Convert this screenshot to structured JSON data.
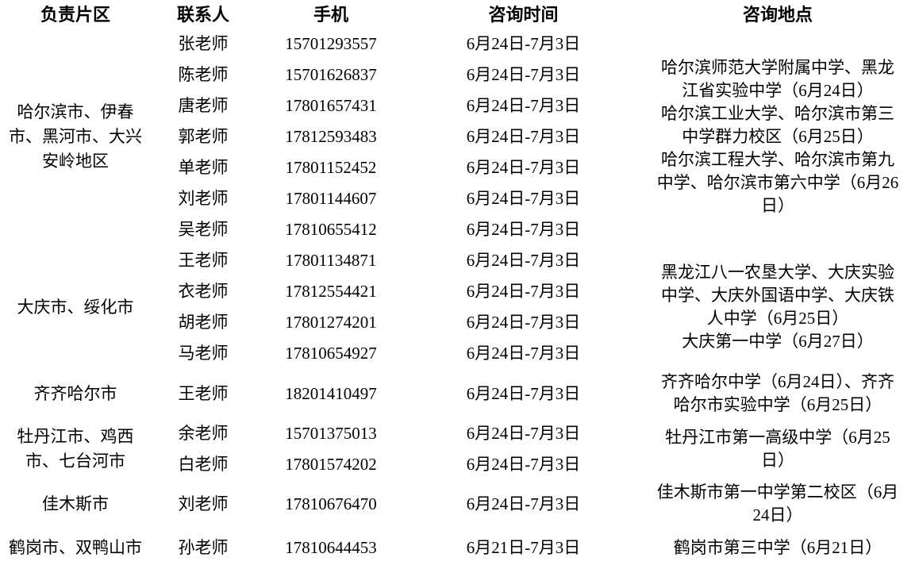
{
  "table": {
    "headers": {
      "area": "负责片区",
      "contact": "联系人",
      "phone": "手机",
      "time": "咨询时间",
      "location": "咨询地点"
    },
    "groups": [
      {
        "area": "哈尔滨市、伊春市、黑河市、大兴安岭地区",
        "contacts": [
          {
            "name": "张老师",
            "phone": "15701293557",
            "time": "6月24日-7月3日"
          },
          {
            "name": "陈老师",
            "phone": "15701626837",
            "time": "6月24日-7月3日"
          },
          {
            "name": "唐老师",
            "phone": "17801657431",
            "time": "6月24日-7月3日"
          },
          {
            "name": "郭老师",
            "phone": "17812593483",
            "time": "6月24日-7月3日"
          },
          {
            "name": "单老师",
            "phone": "17801152452",
            "time": "6月24日-7月3日"
          },
          {
            "name": "刘老师",
            "phone": "17801144607",
            "time": "6月24日-7月3日"
          },
          {
            "name": "吴老师",
            "phone": "17810655412",
            "time": "6月24日-7月3日"
          }
        ],
        "locations": [
          "哈尔滨师范大学附属中学、黑龙江省实验中学（6月24日）",
          "哈尔滨工业大学、哈尔滨市第三中学群力校区（6月25日）",
          "哈尔滨工程大学、哈尔滨市第九中学、哈尔滨市第六中学（6月26日）"
        ]
      },
      {
        "area": "大庆市、绥化市",
        "contacts": [
          {
            "name": "王老师",
            "phone": "17801134871",
            "time": "6月24日-7月3日"
          },
          {
            "name": "衣老师",
            "phone": "17812554421",
            "time": "6月24日-7月3日"
          },
          {
            "name": "胡老师",
            "phone": "17801274201",
            "time": "6月24日-7月3日"
          },
          {
            "name": "马老师",
            "phone": "17810654927",
            "time": "6月24日-7月3日"
          }
        ],
        "locations": [
          "黑龙江八一农垦大学、大庆实验中学、大庆外国语中学、大庆铁人中学（6月25日）",
          "大庆第一中学（6月27日）"
        ]
      },
      {
        "area": "齐齐哈尔市",
        "contacts": [
          {
            "name": "王老师",
            "phone": "18201410497",
            "time": "6月24日-7月3日"
          }
        ],
        "locations": [
          "齐齐哈尔中学（6月24日）、齐齐哈尔市实验中学（6月25日）"
        ]
      },
      {
        "area": "牡丹江市、鸡西市、七台河市",
        "contacts": [
          {
            "name": "余老师",
            "phone": "15701375013",
            "time": "6月24日-7月3日"
          },
          {
            "name": "白老师",
            "phone": "17801574202",
            "time": "6月24日-7月3日"
          }
        ],
        "locations": [
          "牡丹江市第一高级中学（6月25日）"
        ]
      },
      {
        "area": "佳木斯市",
        "contacts": [
          {
            "name": "刘老师",
            "phone": "17810676470",
            "time": "6月24日-7月3日"
          }
        ],
        "locations": [
          "佳木斯市第一中学第二校区（6月24日）"
        ]
      },
      {
        "area": "鹤岗市、双鸭山市",
        "contacts": [
          {
            "name": "孙老师",
            "phone": "17810644453",
            "time": "6月21日-7月3日"
          }
        ],
        "locations": [
          "鹤岗市第三中学（6月21日）"
        ]
      }
    ]
  }
}
